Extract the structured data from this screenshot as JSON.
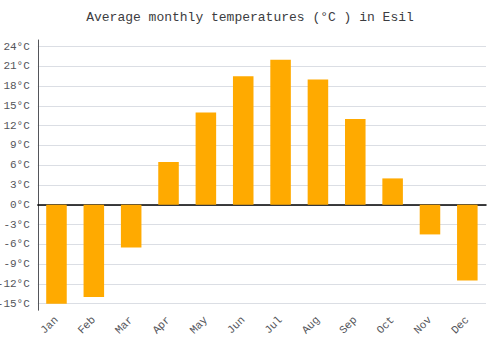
{
  "chart_data": {
    "type": "bar",
    "title": "Average monthly temperatures (°C ) in Esil",
    "categories": [
      "Jan",
      "Feb",
      "Mar",
      "Apr",
      "May",
      "Jun",
      "Jul",
      "Aug",
      "Sep",
      "Oct",
      "Nov",
      "Dec"
    ],
    "values": [
      -15,
      -14,
      -6.5,
      6.5,
      14,
      19.5,
      22,
      19,
      13,
      4,
      -4.5,
      -11.5
    ],
    "color": "#FFAA00",
    "ylim": [
      -16,
      25
    ],
    "yticks": [
      {
        "value": -15,
        "label": "-15°C"
      },
      {
        "value": -12,
        "label": "-12°C"
      },
      {
        "value": -9,
        "label": "-9°C"
      },
      {
        "value": -6,
        "label": "-6°C"
      },
      {
        "value": -3,
        "label": "-3°C"
      },
      {
        "value": 0,
        "label": "0°C"
      },
      {
        "value": 3,
        "label": "3°C"
      },
      {
        "value": 6,
        "label": "6°C"
      },
      {
        "value": 9,
        "label": "9°C"
      },
      {
        "value": 12,
        "label": "12°C"
      },
      {
        "value": 15,
        "label": "15°C"
      },
      {
        "value": 18,
        "label": "18°C"
      },
      {
        "value": 21,
        "label": "21°C"
      },
      {
        "value": 24,
        "label": "24°C"
      }
    ],
    "grid": true
  }
}
